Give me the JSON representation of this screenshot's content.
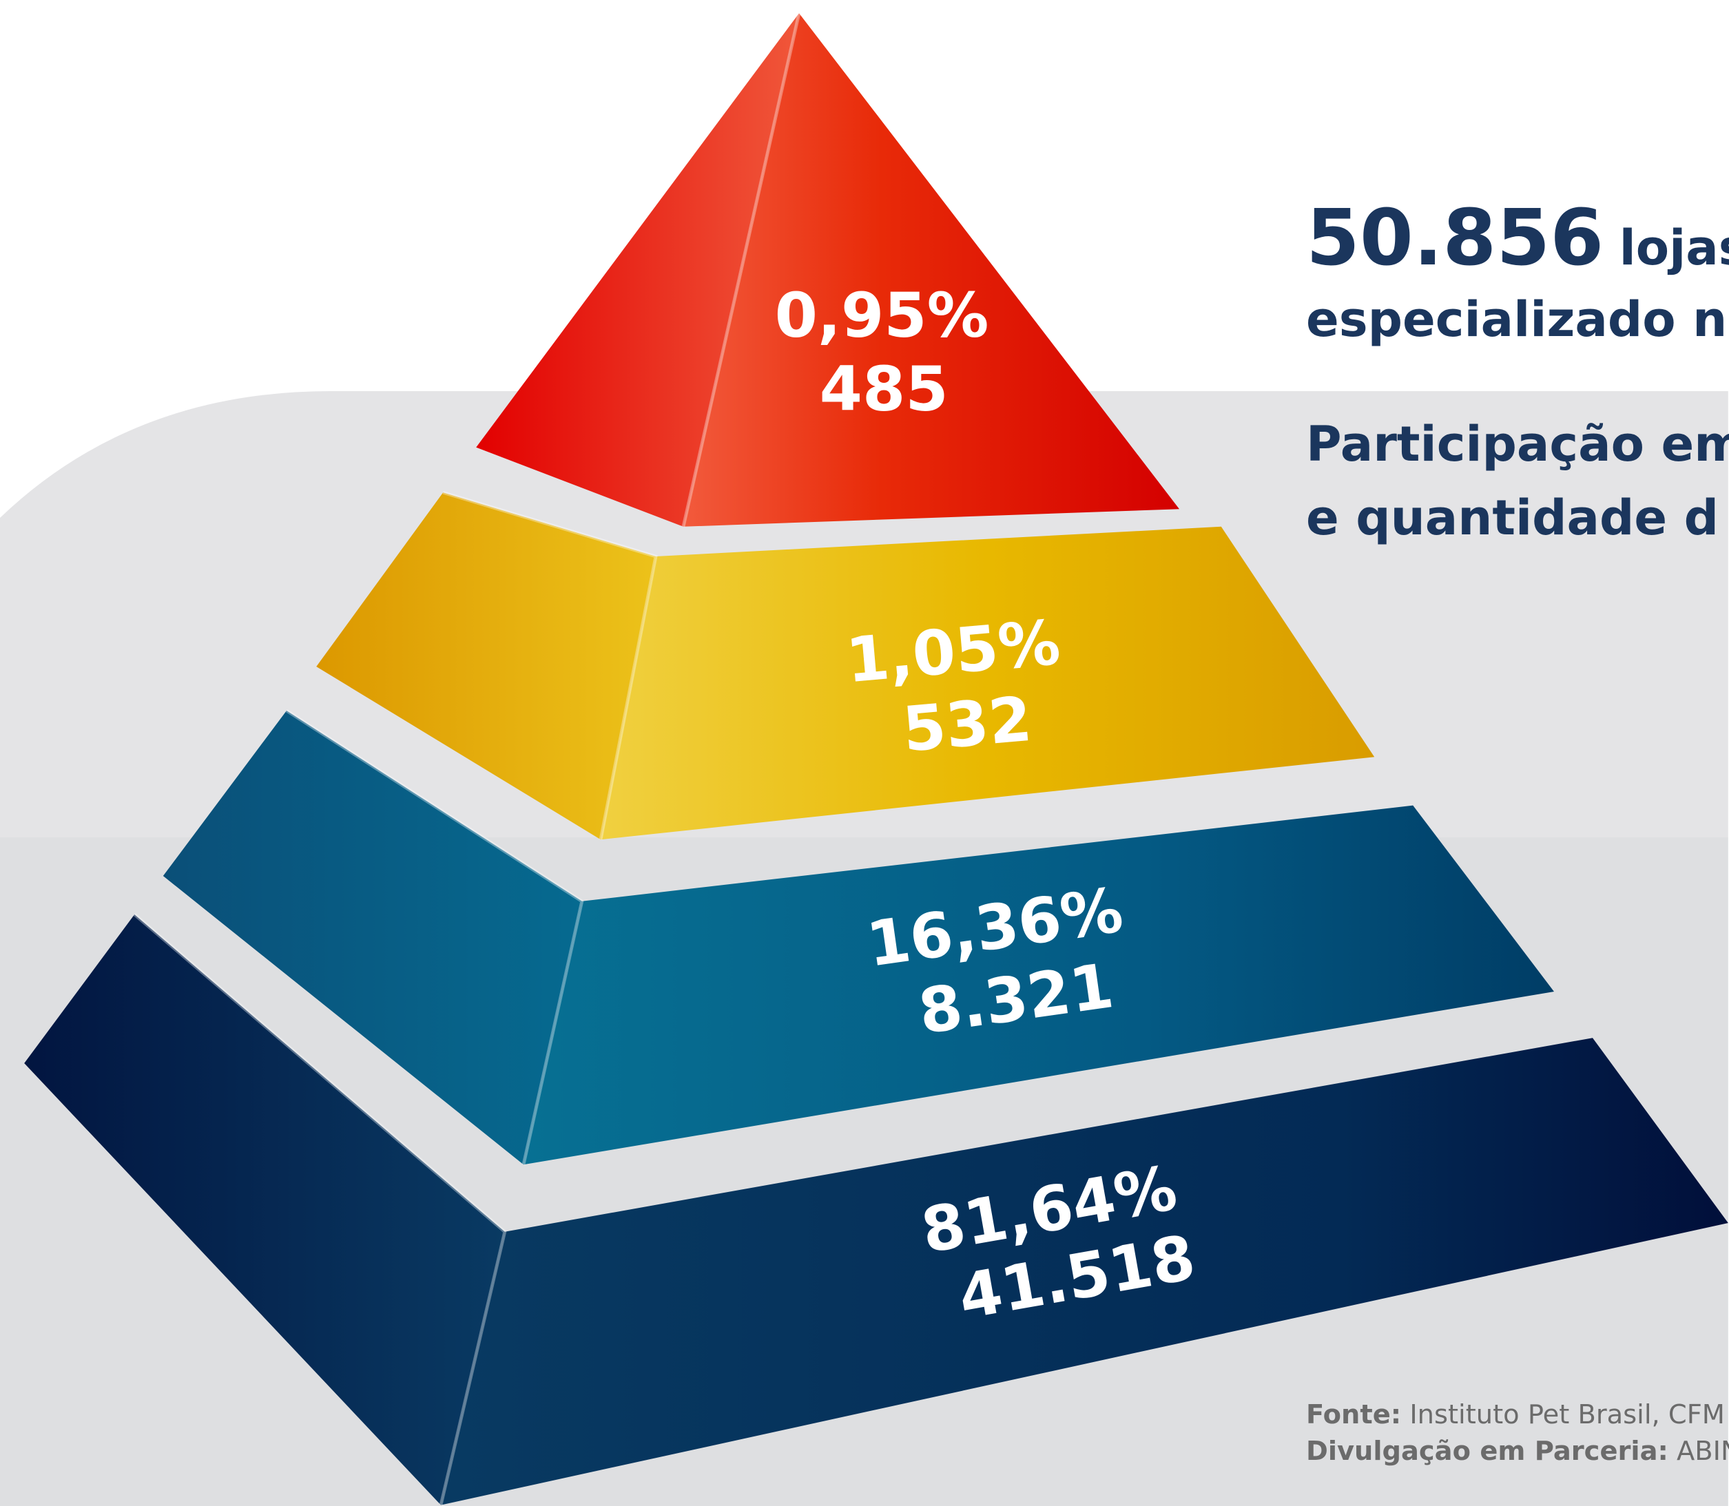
{
  "header": {
    "total": "50.856",
    "total_unit": "lojas",
    "line2": "especializado n",
    "subtitle_1": "Participação em",
    "subtitle_2": "e quantidade d"
  },
  "levels": [
    {
      "percent": "0,95%",
      "count": "485"
    },
    {
      "percent": "1,05%",
      "count": "532"
    },
    {
      "percent": "16,36%",
      "count": "8.321"
    },
    {
      "percent": "81,64%",
      "count": "41.518"
    }
  ],
  "source": {
    "label": "Fonte:",
    "text": "Instituto Pet Brasil, CFM",
    "partner_label": "Divulgação em Parceria:",
    "partner_text": "ABIN"
  }
}
